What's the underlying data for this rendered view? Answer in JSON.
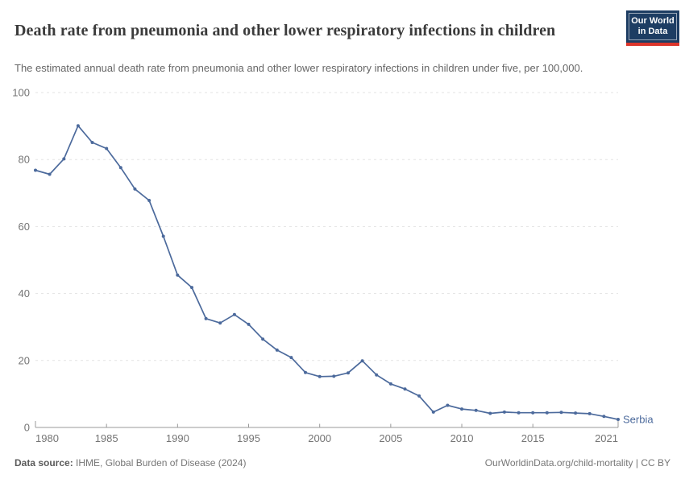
{
  "header": {
    "title": "Death rate from pneumonia and other lower respiratory infections in children",
    "subtitle": "The estimated annual death rate from pneumonia and other lower respiratory infections in children under five, per 100,000.",
    "logo": {
      "line1": "Our World",
      "line2": "in Data"
    }
  },
  "footer": {
    "source_label": "Data source:",
    "source_text": " IHME, Global Burden of Disease (2024)",
    "credit": "OurWorldinData.org/child-mortality | CC BY"
  },
  "colors": {
    "line": "#4c6a9c",
    "grid": "#e3e3e3",
    "axis": "#999999",
    "tick_label": "#757575",
    "title": "#3b3b3b",
    "subtitle": "#666666",
    "logo_bg": "#1d3d63",
    "logo_red": "#dc352b"
  },
  "chart_data": {
    "type": "line",
    "title": "Death rate from pneumonia and other lower respiratory infections in children",
    "subtitle": "The estimated annual death rate from pneumonia and other lower respiratory infections in children under five, per 100,000.",
    "xlabel": "",
    "ylabel": "",
    "xlim": [
      1980,
      2021
    ],
    "ylim": [
      0,
      100
    ],
    "x_ticks": [
      1980,
      1985,
      1990,
      1995,
      2000,
      2005,
      2010,
      2015,
      2021
    ],
    "y_ticks": [
      0,
      20,
      40,
      60,
      80,
      100
    ],
    "grid": "horizontal-dashed",
    "legend_position": "end-of-line-label",
    "series": [
      {
        "name": "Serbia",
        "color": "#4c6a9c",
        "x": [
          1980,
          1981,
          1982,
          1983,
          1984,
          1985,
          1986,
          1987,
          1988,
          1989,
          1990,
          1991,
          1992,
          1993,
          1994,
          1995,
          1996,
          1997,
          1998,
          1999,
          2000,
          2001,
          2002,
          2003,
          2004,
          2005,
          2006,
          2007,
          2008,
          2009,
          2010,
          2011,
          2012,
          2013,
          2014,
          2015,
          2016,
          2017,
          2018,
          2019,
          2020,
          2021
        ],
        "values": [
          76.8,
          75.6,
          80.2,
          90.1,
          85.1,
          83.3,
          77.6,
          71.2,
          67.8,
          57.1,
          45.5,
          41.8,
          32.5,
          31.2,
          33.7,
          30.8,
          26.4,
          23.1,
          20.9,
          16.4,
          15.2,
          15.3,
          16.3,
          19.9,
          15.7,
          13.0,
          11.5,
          9.4,
          4.6,
          6.6,
          5.5,
          5.1,
          4.2,
          4.6,
          4.4,
          4.4,
          4.4,
          4.5,
          4.3,
          4.1,
          3.3,
          2.4
        ]
      }
    ],
    "end_label": "Serbia"
  }
}
